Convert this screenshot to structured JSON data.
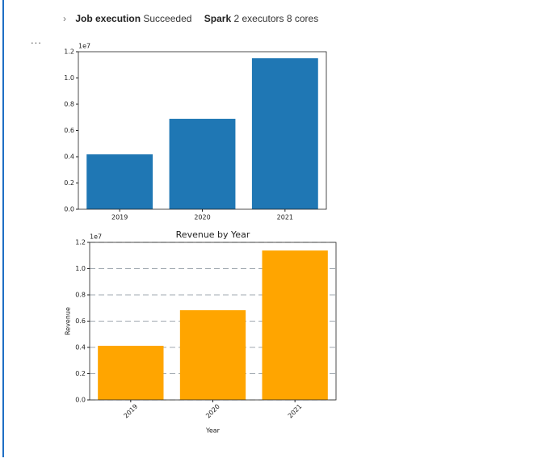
{
  "header": {
    "job_label": "Job execution",
    "job_status": "Succeeded",
    "spark_label": "Spark",
    "spark_detail": "2 executors 8 cores",
    "more": "..."
  },
  "chart_data": [
    {
      "type": "bar",
      "offset_text": "1e7",
      "categories": [
        "2019",
        "2020",
        "2021"
      ],
      "values": [
        4180000,
        6890000,
        11500000
      ],
      "color": "#1f77b4",
      "ylim": [
        0,
        12000000
      ],
      "yticks": [
        {
          "value": 0,
          "label": "0.0"
        },
        {
          "value": 2000000,
          "label": "0.2"
        },
        {
          "value": 4000000,
          "label": "0.4"
        },
        {
          "value": 6000000,
          "label": "0.6"
        },
        {
          "value": 8000000,
          "label": "0.8"
        },
        {
          "value": 10000000,
          "label": "1.0"
        },
        {
          "value": 12000000,
          "label": "1.2"
        }
      ],
      "grid": false
    },
    {
      "type": "bar",
      "title": "Revenue by Year",
      "x_label": "Year",
      "y_label": "Revenue",
      "offset_text": "1e7",
      "categories": [
        "2019",
        "2020",
        "2021"
      ],
      "values": [
        4120000,
        6830000,
        11380000
      ],
      "color": "#ffa500",
      "ylim": [
        0,
        12000000
      ],
      "yticks": [
        {
          "value": 0,
          "label": "0.0"
        },
        {
          "value": 2000000,
          "label": "0.2"
        },
        {
          "value": 4000000,
          "label": "0.4"
        },
        {
          "value": 6000000,
          "label": "0.6"
        },
        {
          "value": 8000000,
          "label": "0.8"
        },
        {
          "value": 10000000,
          "label": "1.0"
        },
        {
          "value": 12000000,
          "label": "1.2"
        }
      ],
      "grid": true,
      "rotate_x_labels": true
    }
  ]
}
